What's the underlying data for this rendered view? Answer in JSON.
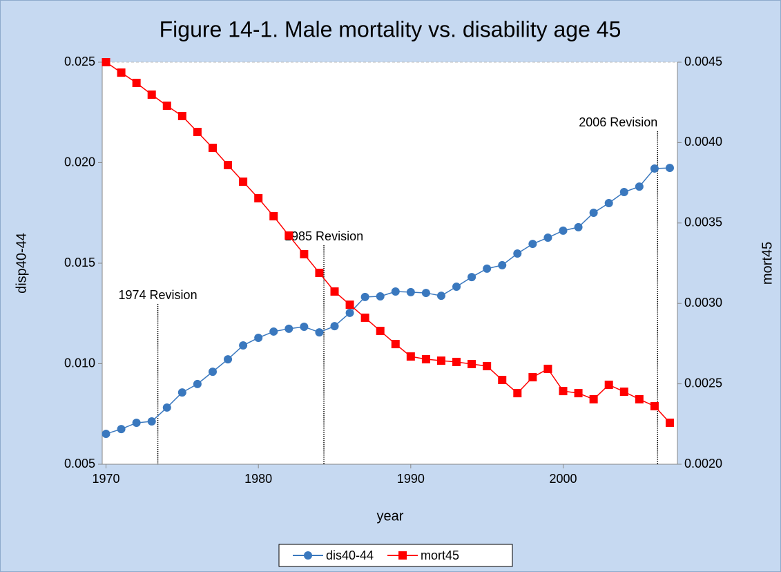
{
  "chart_data": {
    "type": "line",
    "title": "Figure 14-1. Male mortality vs. disability age 45",
    "x_label": "year",
    "y_label": "disp40-44",
    "y2_label": "mort45",
    "x": [
      1970,
      1971,
      1972,
      1973,
      1974,
      1975,
      1976,
      1977,
      1978,
      1979,
      1980,
      1981,
      1982,
      1983,
      1984,
      1985,
      1986,
      1987,
      1988,
      1989,
      1990,
      1991,
      1992,
      1993,
      1994,
      1995,
      1996,
      1997,
      1998,
      1999,
      2000,
      2001,
      2002,
      2003,
      2004,
      2005,
      2006,
      2007
    ],
    "xlim": [
      1969.75,
      2007.5
    ],
    "xticks": [
      1970,
      1980,
      1990,
      2000
    ],
    "ylim": [
      0.005,
      0.025
    ],
    "yticks": [
      0.005,
      {
        "value": 0.01,
        "label": "0.010"
      },
      0.015,
      {
        "value": 0.02,
        "label": "0.020"
      },
      0.025
    ],
    "y2lim": [
      0.002,
      0.0045
    ],
    "y2ticks": [
      {
        "value": 0.002,
        "label": "0.0020"
      },
      0.0025,
      {
        "value": 0.003,
        "label": "0.0030"
      },
      0.0035,
      {
        "value": 0.004,
        "label": "0.0040"
      },
      0.0045
    ],
    "series": [
      {
        "name": "dis40-44",
        "color": "#3a78be",
        "marker": "circle",
        "values": [
          0.00651,
          0.00675,
          0.00706,
          0.00713,
          0.00782,
          0.00857,
          0.00899,
          0.0096,
          0.01022,
          0.01091,
          0.01129,
          0.0116,
          0.01174,
          0.01184,
          0.01156,
          0.01187,
          0.01253,
          0.01332,
          0.01335,
          0.01359,
          0.01356,
          0.01352,
          0.01338,
          0.01383,
          0.01431,
          0.01473,
          0.0149,
          0.01548,
          0.01596,
          0.01627,
          0.01662,
          0.01679,
          0.01751,
          0.01799,
          0.01854,
          0.01881,
          0.01971,
          0.01974
        ]
      },
      {
        "name": "mort45",
        "color": "#ff0000",
        "marker": "square",
        "axis": "y2",
        "values": [
          0.0045,
          0.004435,
          0.004371,
          0.004298,
          0.004229,
          0.004165,
          0.004066,
          0.003967,
          0.00386,
          0.003757,
          0.003654,
          0.003542,
          0.003422,
          0.003306,
          0.00319,
          0.003074,
          0.002992,
          0.002911,
          0.002829,
          0.002747,
          0.00267,
          0.002653,
          0.002644,
          0.002636,
          0.002623,
          0.00261,
          0.002524,
          0.002442,
          0.002541,
          0.002593,
          0.002455,
          0.002442,
          0.002404,
          0.002494,
          0.002451,
          0.002404,
          0.002361,
          0.002258
        ]
      }
    ],
    "annotations": [
      {
        "text": "1974 Revision",
        "x": 1973.4
      },
      {
        "text": "1985 Revision",
        "x": 1984.3
      },
      {
        "text": "2006 Revision",
        "x": 2006.2
      }
    ],
    "legend": "bottom"
  }
}
